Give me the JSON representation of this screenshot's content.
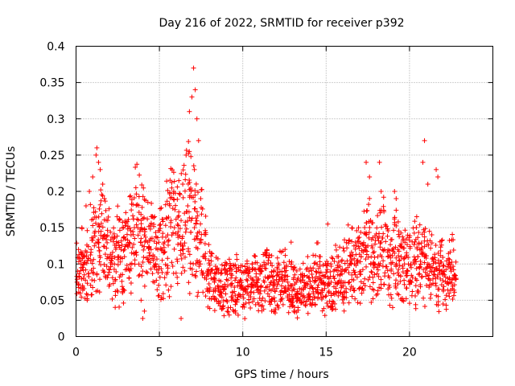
{
  "chart_data": {
    "type": "scatter",
    "title": "Day 216 of 2022, SRMTID for receiver p392",
    "xlabel": "GPS time / hours",
    "ylabel": "SRMTID / TECUs",
    "xlim": [
      0,
      25
    ],
    "ylim": [
      0,
      0.4
    ],
    "x_ticks": [
      "0",
      "5",
      "10",
      "15",
      "20"
    ],
    "y_ticks": [
      "0",
      "0.05",
      "0.1",
      "0.15",
      "0.2",
      "0.25",
      "0.3",
      "0.35",
      "0.4"
    ],
    "grid": true,
    "marker": "+",
    "color": "#ff0000",
    "series": [
      {
        "name": "SRMTID",
        "x": [
          0.1,
          0.3,
          0.5,
          0.7,
          0.9,
          1.1,
          1.3,
          1.5,
          1.7,
          1.9,
          2.1,
          2.3,
          2.5,
          2.7,
          2.9,
          3.1,
          3.3,
          3.5,
          3.7,
          3.9,
          4.1,
          4.3,
          4.5,
          4.7,
          4.9,
          5.1,
          5.3,
          5.5,
          5.7,
          5.9,
          6.1,
          6.3,
          6.5,
          6.7,
          6.9,
          7.1,
          7.3,
          7.5,
          7.7,
          7.9,
          8.1,
          8.3,
          8.5,
          8.7,
          8.9,
          9.1,
          9.3,
          9.5,
          9.7,
          9.9,
          10.1,
          10.3,
          10.5,
          10.7,
          10.9,
          11.1,
          11.3,
          11.5,
          11.7,
          11.9,
          12.1,
          12.3,
          12.5,
          12.7,
          12.9,
          13.1,
          13.3,
          13.5,
          13.7,
          13.9,
          14.1,
          14.3,
          14.5,
          14.7,
          14.9,
          15.1,
          15.3,
          15.5,
          15.7,
          15.9,
          16.1,
          16.3,
          16.5,
          16.7,
          16.9,
          17.1,
          17.3,
          17.5,
          17.7,
          17.9,
          18.1,
          18.3,
          18.5,
          18.7,
          18.9,
          19.1,
          19.3,
          19.5,
          19.7,
          19.9,
          20.1,
          20.3,
          20.5,
          20.7,
          20.9,
          21.1,
          21.3,
          21.5,
          21.7,
          21.9,
          22.1,
          22.3,
          22.5,
          22.7,
          0.15,
          0.35,
          0.6,
          0.8,
          1.0,
          1.2,
          1.25,
          1.35,
          1.45,
          1.6,
          1.7,
          1.9,
          6.4,
          6.6,
          6.8,
          6.95,
          7.05,
          7.15,
          7.25,
          7.35,
          7.1,
          6.9,
          17.4,
          17.6,
          18.2,
          18.3,
          19.1,
          19.2,
          20.8,
          20.9,
          21.1,
          21.6,
          21.7,
          15.1,
          12.9,
          3.9,
          4.0,
          4.1,
          6.3,
          2.8,
          3.3,
          5.6
        ],
        "y": [
          0.09,
          0.1,
          0.085,
          0.105,
          0.12,
          0.125,
          0.13,
          0.145,
          0.14,
          0.11,
          0.105,
          0.1,
          0.11,
          0.12,
          0.12,
          0.125,
          0.14,
          0.15,
          0.15,
          0.135,
          0.14,
          0.13,
          0.12,
          0.11,
          0.12,
          0.12,
          0.13,
          0.14,
          0.16,
          0.15,
          0.14,
          0.16,
          0.17,
          0.18,
          0.16,
          0.15,
          0.135,
          0.13,
          0.11,
          0.09,
          0.08,
          0.075,
          0.07,
          0.068,
          0.065,
          0.07,
          0.07,
          0.068,
          0.07,
          0.066,
          0.065,
          0.07,
          0.072,
          0.07,
          0.068,
          0.07,
          0.075,
          0.08,
          0.075,
          0.07,
          0.072,
          0.08,
          0.078,
          0.075,
          0.07,
          0.065,
          0.06,
          0.06,
          0.07,
          0.072,
          0.07,
          0.075,
          0.08,
          0.075,
          0.072,
          0.07,
          0.075,
          0.08,
          0.085,
          0.09,
          0.09,
          0.095,
          0.1,
          0.1,
          0.105,
          0.11,
          0.12,
          0.125,
          0.11,
          0.1,
          0.11,
          0.13,
          0.12,
          0.11,
          0.1,
          0.115,
          0.12,
          0.11,
          0.1,
          0.09,
          0.095,
          0.1,
          0.11,
          0.12,
          0.11,
          0.1,
          0.095,
          0.09,
          0.085,
          0.09,
          0.085,
          0.08,
          0.09,
          0.085,
          0.12,
          0.15,
          0.18,
          0.2,
          0.22,
          0.25,
          0.26,
          0.24,
          0.23,
          0.21,
          0.19,
          0.16,
          0.21,
          0.25,
          0.31,
          0.33,
          0.37,
          0.34,
          0.3,
          0.27,
          0.23,
          0.2,
          0.24,
          0.22,
          0.24,
          0.2,
          0.2,
          0.19,
          0.24,
          0.27,
          0.21,
          0.23,
          0.22,
          0.155,
          0.13,
          0.05,
          0.025,
          0.035,
          0.025,
          0.065,
          0.06,
          0.055
        ]
      }
    ]
  }
}
